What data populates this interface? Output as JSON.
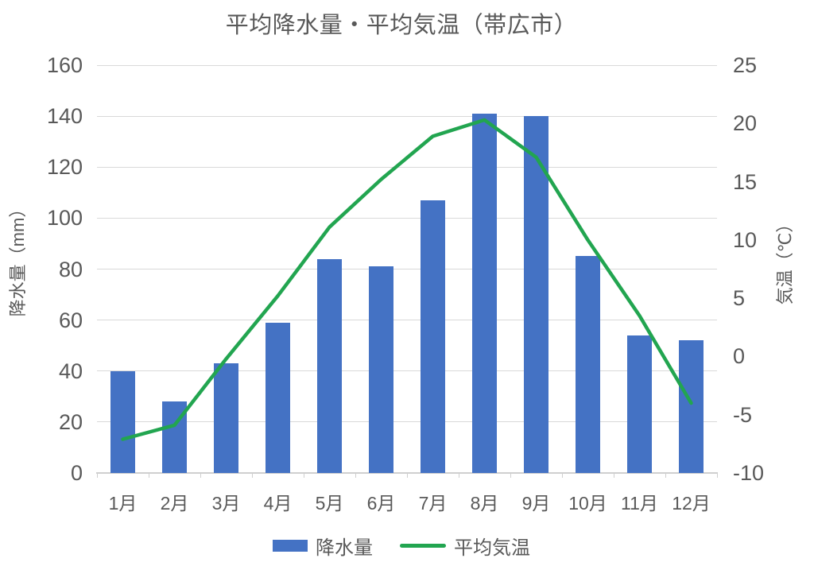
{
  "title": "平均降水量・平均気温（帯広市）",
  "chart_data": {
    "type": "combo",
    "categories": [
      "1月",
      "2月",
      "3月",
      "4月",
      "5月",
      "6月",
      "7月",
      "8月",
      "9月",
      "10月",
      "11月",
      "12月"
    ],
    "series": [
      {
        "name": "降水量",
        "chart_type": "bar",
        "y_axis": "left",
        "color": "#4472C4",
        "values": [
          40,
          28,
          43,
          59,
          84,
          81,
          107,
          141,
          140,
          85,
          54,
          52
        ]
      },
      {
        "name": "平均気温",
        "chart_type": "line",
        "y_axis": "right",
        "color": "#22A550",
        "values": [
          -7.1,
          -5.9,
          -0.2,
          5.2,
          11.1,
          15.2,
          18.9,
          20.3,
          17.1,
          10.0,
          3.5,
          -4.0
        ]
      }
    ],
    "left_axis": {
      "title": "降水量（mm）",
      "min": 0,
      "max": 160,
      "step": 20
    },
    "right_axis": {
      "title": "気温（℃）",
      "min": -10,
      "max": 25,
      "step": 5
    },
    "grid": true,
    "legend_position": "bottom",
    "colors": {
      "text": "#595959",
      "gridline": "#D9D9D9",
      "axis_line": "#CFCFCF"
    }
  }
}
